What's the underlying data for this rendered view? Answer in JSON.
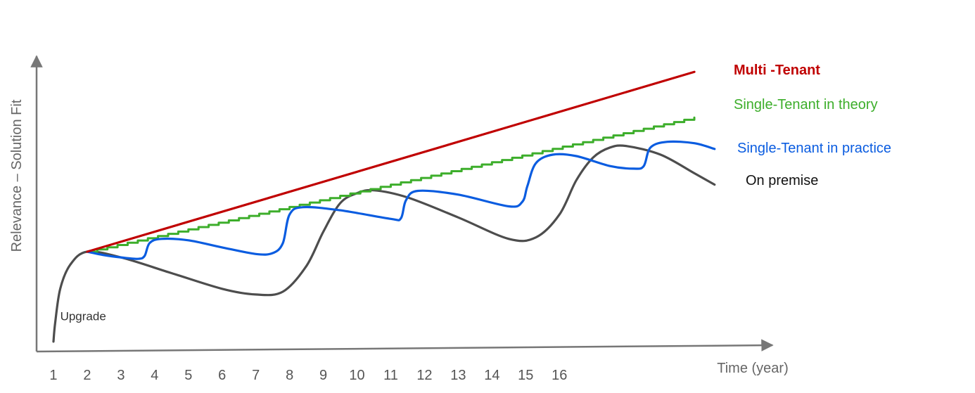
{
  "chart_data": {
    "type": "line",
    "title": "",
    "xlabel": "Time (year)",
    "ylabel": "Relevance – Solution Fit",
    "categories": [
      "1",
      "2",
      "3",
      "4",
      "5",
      "6",
      "7",
      "8",
      "9",
      "10",
      "11",
      "12",
      "13",
      "14",
      "15",
      "16"
    ],
    "xlim": [
      0.75,
      21
    ],
    "ylim": [
      0,
      100
    ],
    "grid": false,
    "legend_placement": "right",
    "annotations": [
      {
        "text": "Upgrade",
        "x": 1.2,
        "y": 9
      }
    ],
    "series": [
      {
        "name": "Multi -Tenant",
        "color": "#c00000",
        "style": "linear",
        "points": [
          [
            2,
            33
          ],
          [
            20,
            96
          ]
        ]
      },
      {
        "name": "Single-Tenant in theory",
        "color": "#3dae2b",
        "style": "step",
        "steps": 60,
        "points": [
          [
            2,
            33
          ],
          [
            20,
            80
          ]
        ]
      },
      {
        "name": "Single-Tenant in practice",
        "color": "#0a5ce0",
        "style": "smooth",
        "points": [
          [
            2,
            33
          ],
          [
            2.5,
            31.8
          ],
          [
            3,
            31
          ],
          [
            3.5,
            30.5
          ],
          [
            3.7,
            31.5
          ],
          [
            3.85,
            36
          ],
          [
            4.2,
            37.5
          ],
          [
            5,
            37
          ],
          [
            6,
            34.5
          ],
          [
            7,
            32.2
          ],
          [
            7.5,
            32.5
          ],
          [
            7.8,
            36
          ],
          [
            8.0,
            46
          ],
          [
            8.4,
            48.6
          ],
          [
            9.5,
            47.5
          ],
          [
            11,
            44.5
          ],
          [
            11.3,
            44.7
          ],
          [
            11.45,
            51
          ],
          [
            11.8,
            54.3
          ],
          [
            13,
            53
          ],
          [
            14.5,
            48.9
          ],
          [
            14.9,
            50.5
          ],
          [
            15.05,
            56
          ],
          [
            15.3,
            64
          ],
          [
            15.8,
            67
          ],
          [
            16.5,
            66.5
          ],
          [
            17.5,
            63
          ],
          [
            18.2,
            62.1
          ],
          [
            18.5,
            63
          ],
          [
            18.7,
            69.5
          ],
          [
            19.2,
            71.5
          ],
          [
            20,
            71
          ],
          [
            20.6,
            69
          ]
        ]
      },
      {
        "name": "On premise",
        "color": "#4d4d4d",
        "style": "smooth",
        "points": [
          [
            1,
            1.5
          ],
          [
            1.05,
            8
          ],
          [
            1.2,
            20
          ],
          [
            1.5,
            28.5
          ],
          [
            2,
            33
          ],
          [
            3,
            31
          ],
          [
            4.5,
            25.5
          ],
          [
            6,
            20
          ],
          [
            7,
            18
          ],
          [
            7.8,
            19
          ],
          [
            8.5,
            28
          ],
          [
            9,
            40
          ],
          [
            9.5,
            50
          ],
          [
            10,
            53.5
          ],
          [
            10.5,
            54.5
          ],
          [
            11.5,
            52
          ],
          [
            13,
            45
          ],
          [
            14.5,
            37.5
          ],
          [
            15.3,
            38
          ],
          [
            16,
            46
          ],
          [
            16.5,
            58
          ],
          [
            17,
            66
          ],
          [
            17.5,
            69.5
          ],
          [
            18,
            70
          ],
          [
            19,
            67
          ],
          [
            20,
            60.5
          ],
          [
            20.6,
            56.5
          ]
        ]
      }
    ]
  }
}
